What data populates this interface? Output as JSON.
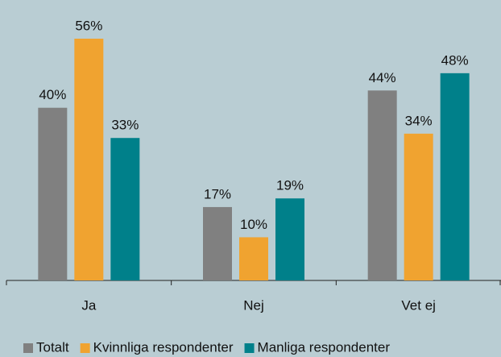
{
  "chart_data": {
    "type": "bar",
    "categories": [
      "Ja",
      "Nej",
      "Vet ej"
    ],
    "series": [
      {
        "name": "Totalt",
        "color": "#808080",
        "values": [
          40,
          17,
          44
        ],
        "value_labels": [
          "40%",
          "17%",
          "44%"
        ]
      },
      {
        "name": "Kvinnliga respondenter",
        "color": "#f0a330",
        "values": [
          56,
          10,
          34
        ],
        "value_labels": [
          "56%",
          "10%",
          "34%"
        ]
      },
      {
        "name": "Manliga respondenter",
        "color": "#00808a",
        "values": [
          33,
          19,
          48
        ],
        "value_labels": [
          "33%",
          "19%",
          "48%"
        ]
      }
    ],
    "ylim": [
      0,
      56
    ],
    "legend": "bottom"
  }
}
